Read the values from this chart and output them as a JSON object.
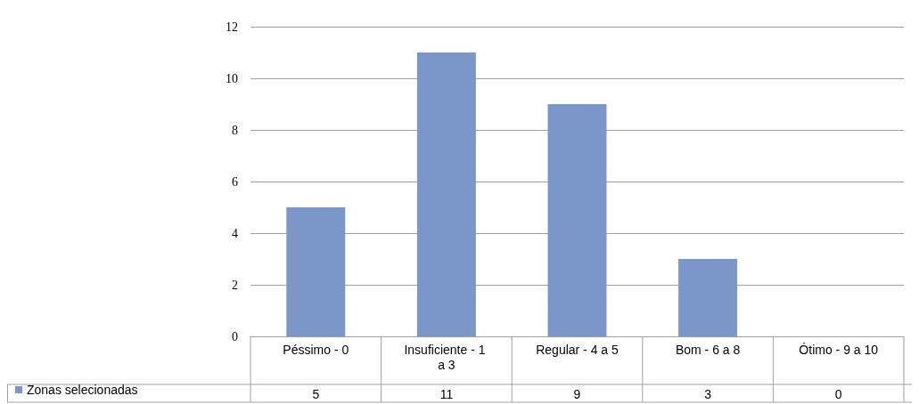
{
  "chart_data": {
    "type": "bar",
    "categories": [
      "Péssimo - 0",
      "Insuficiente - 1 a 3",
      "Regular - 4 a 5",
      "Bom - 6 a 8",
      "Ótimo - 9 a 10"
    ],
    "series": [
      {
        "name": "Zonas selecionadas",
        "color": "#7b96c8",
        "values": [
          5,
          11,
          9,
          3,
          0
        ]
      }
    ],
    "ylim": [
      0,
      12
    ],
    "yticks": [
      0,
      2,
      4,
      6,
      8,
      10,
      12
    ],
    "grid": "y",
    "legend": "bottom",
    "data_labels": true
  }
}
